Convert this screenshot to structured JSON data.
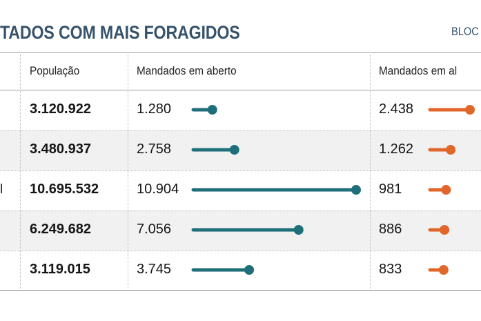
{
  "header": {
    "title": "TADOS COM MAIS FORAGIDOS",
    "source": "BLOC"
  },
  "columns": {
    "population": "População",
    "open_warrants": "Mandados em aberto",
    "open_warrants_2": "Mandados em al"
  },
  "colors": {
    "teal": "#1f6f7a",
    "orange": "#e0662a",
    "title": "#36536b"
  },
  "chart_data": {
    "type": "table",
    "columns": [
      "População",
      "Mandados em aberto",
      "Mandados em al"
    ],
    "rows": [
      {
        "state_fragment": "",
        "population": "3.120.922",
        "open": "1.280",
        "open_value": 1280,
        "second": "2.438",
        "second_value": 2438
      },
      {
        "state_fragment": "",
        "population": "3.480.937",
        "open": "2.758",
        "open_value": 2758,
        "second": "1.262",
        "second_value": 1262
      },
      {
        "state_fragment": "l",
        "population": "10.695.532",
        "open": "10.904",
        "open_value": 10904,
        "second": "981",
        "second_value": 981
      },
      {
        "state_fragment": "",
        "population": "6.249.682",
        "open": "7.056",
        "open_value": 7056,
        "second": "886",
        "second_value": 886
      },
      {
        "state_fragment": "",
        "population": "3.119.015",
        "open": "3.745",
        "open_value": 3745,
        "second": "833",
        "second_value": 833
      }
    ]
  }
}
